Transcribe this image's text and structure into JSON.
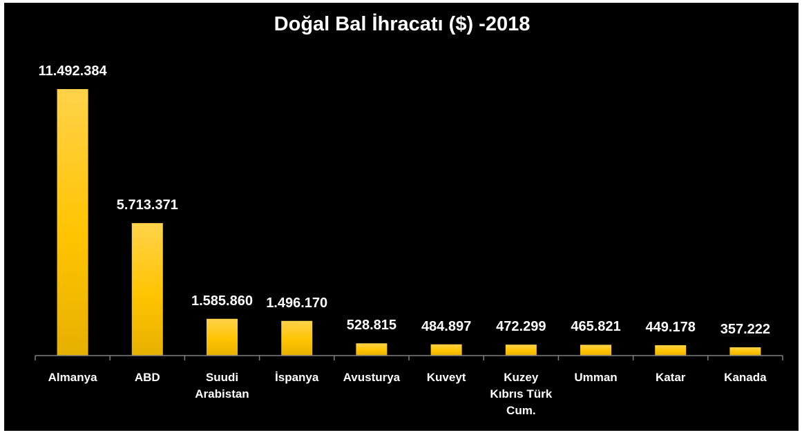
{
  "chart_data": {
    "type": "bar",
    "title": "Doğal Bal İhracatı ($) -2018",
    "categories": [
      "Almanya",
      "ABD",
      "Suudi\nArabistan",
      "İspanya",
      "Avusturya",
      "Kuveyt",
      "Kuzey\nKıbrıs Türk\nCum.",
      "Umman",
      "Katar",
      "Kanada"
    ],
    "values": [
      11492384,
      5713371,
      1585860,
      1496170,
      528815,
      484897,
      472299,
      465821,
      449178,
      357222
    ],
    "data_labels": [
      "11.492.384",
      "5.713.371",
      "1.585.860",
      "1.496.170",
      "528.815",
      "484.897",
      "472.299",
      "465.821",
      "449.178",
      "357.222"
    ],
    "xlabel": "",
    "ylabel": "",
    "grid": false,
    "legend": "none",
    "colors": {
      "background": "#000000",
      "bar_top": "#ffd24a",
      "bar_mid": "#ffc400",
      "bar_bottom": "#e6b000",
      "text": "#ffffff",
      "axis": "#808080"
    }
  }
}
